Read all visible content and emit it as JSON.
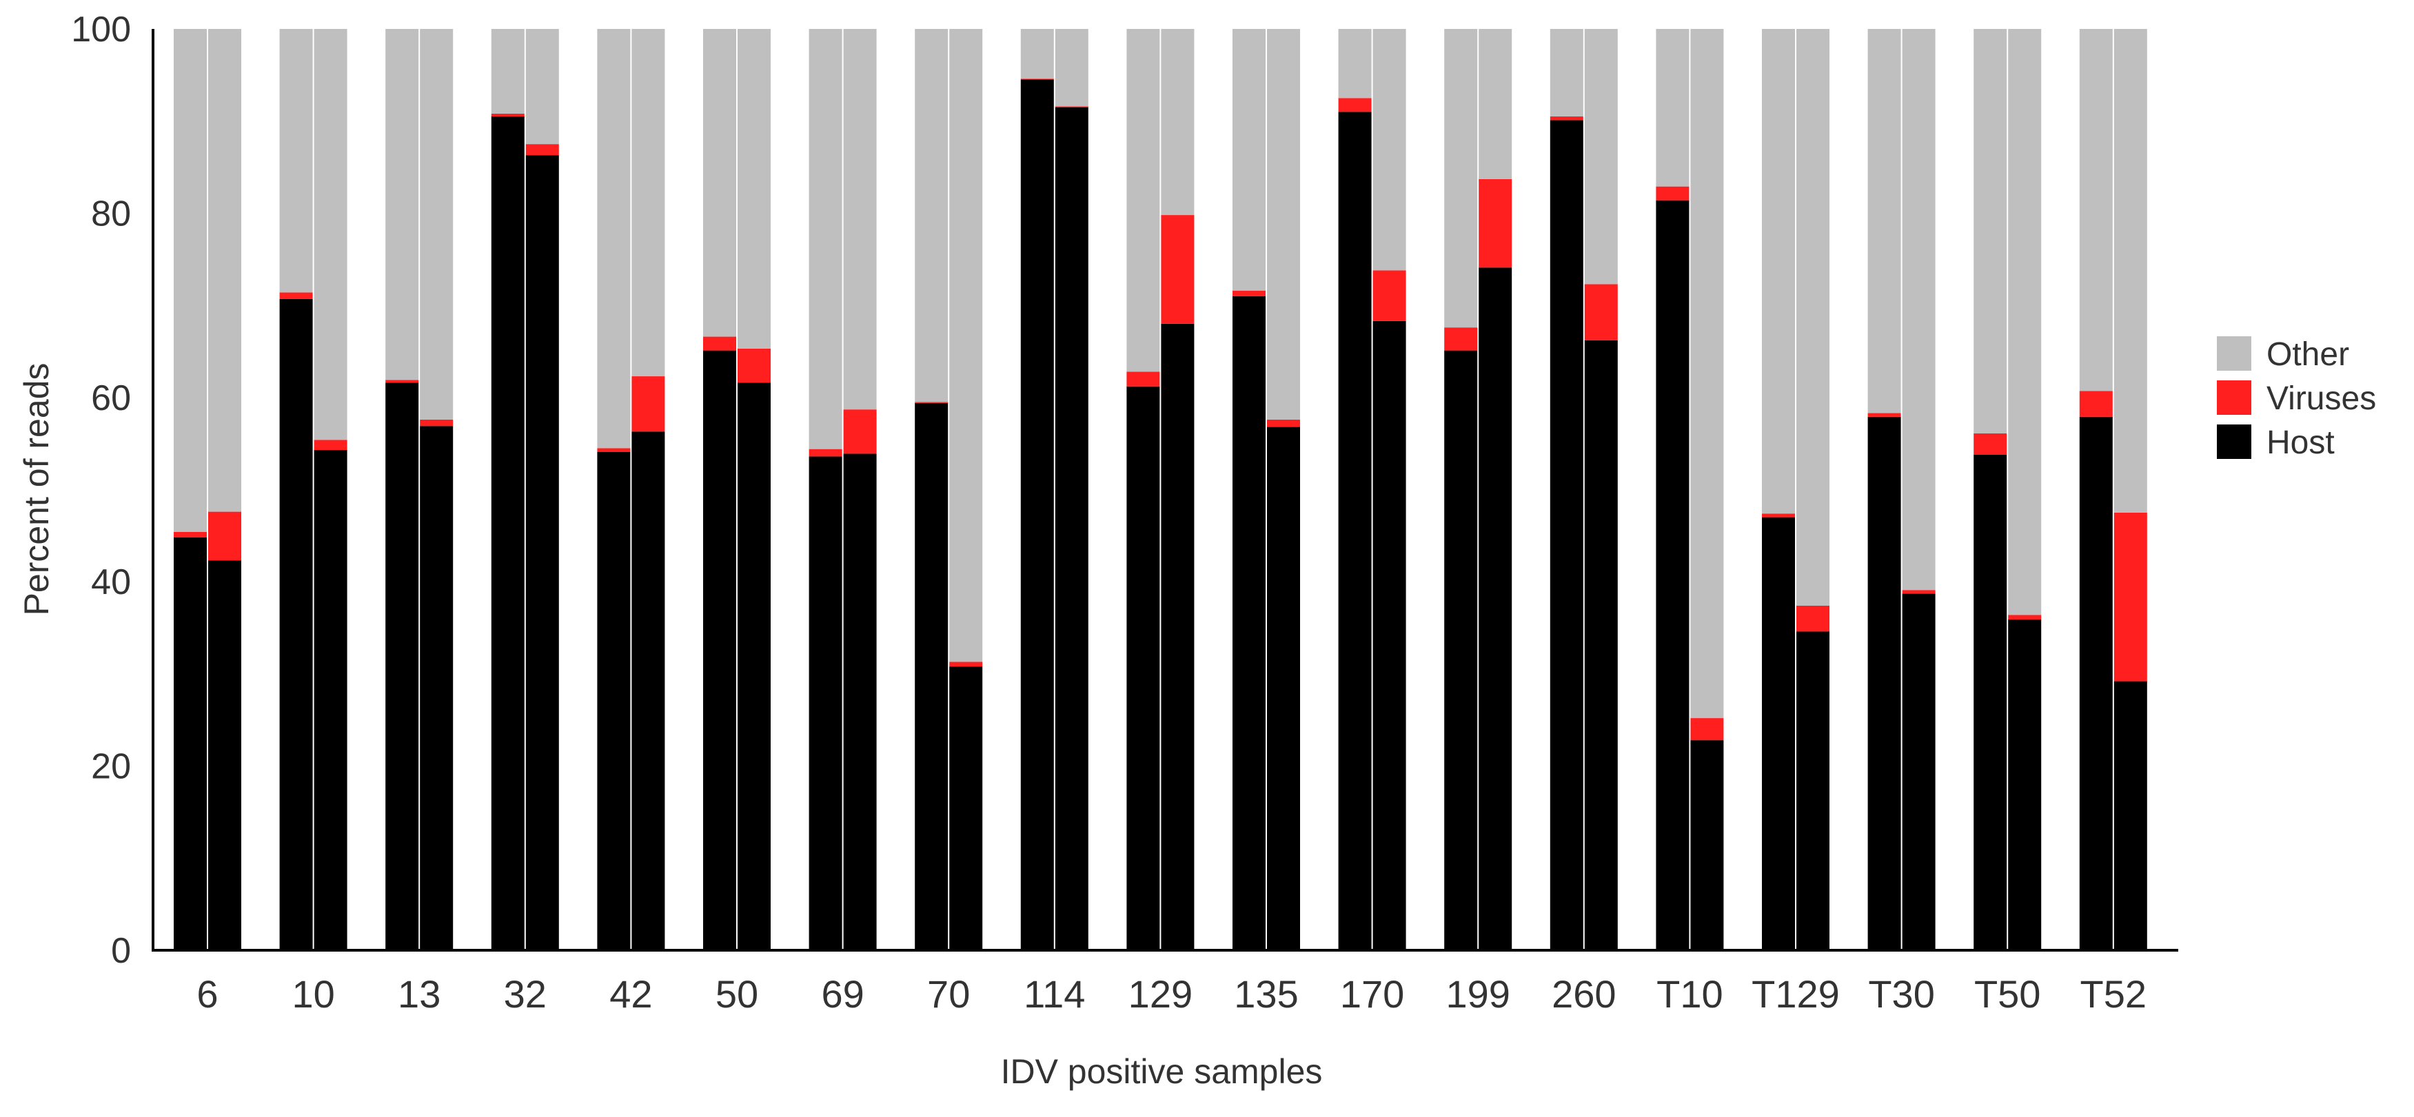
{
  "chart_data": {
    "type": "bar",
    "stacked": true,
    "title": "",
    "xlabel": "IDV positive samples",
    "ylabel": "Percent of reads",
    "ylim": [
      0,
      100
    ],
    "yticks": [
      0,
      20,
      40,
      60,
      80,
      100
    ],
    "grid": false,
    "legend_position": "right",
    "categories": [
      "6",
      "10",
      "13",
      "32",
      "42",
      "50",
      "69",
      "70",
      "114",
      "129",
      "135",
      "170",
      "199",
      "260",
      "T10",
      "T129",
      "T30",
      "T50",
      "T52"
    ],
    "bars_per_category": 2,
    "series": [
      {
        "name": "Host",
        "color": "#000000",
        "values": [
          [
            44.8,
            42.3
          ],
          [
            70.7,
            54.3
          ],
          [
            61.6,
            56.9
          ],
          [
            90.5,
            86.3
          ],
          [
            54.1,
            56.3
          ],
          [
            65.1,
            61.6
          ],
          [
            53.6,
            53.9
          ],
          [
            59.4,
            30.8
          ],
          [
            94.5,
            91.5
          ],
          [
            61.2,
            68.0
          ],
          [
            71.0,
            56.8
          ],
          [
            91.0,
            68.3
          ],
          [
            65.1,
            74.1
          ],
          [
            90.1,
            66.2
          ],
          [
            81.4,
            22.8
          ],
          [
            47.0,
            34.6
          ],
          [
            57.9,
            38.7
          ],
          [
            53.8,
            35.9
          ],
          [
            57.9,
            29.2
          ]
        ]
      },
      {
        "name": "Viruses",
        "color": "#ff1f1f",
        "values": [
          [
            0.6,
            5.3
          ],
          [
            0.7,
            1.1
          ],
          [
            0.3,
            0.7
          ],
          [
            0.3,
            1.2
          ],
          [
            0.4,
            6.0
          ],
          [
            1.5,
            3.7
          ],
          [
            0.8,
            4.8
          ],
          [
            0.1,
            0.5
          ],
          [
            0.1,
            0.1
          ],
          [
            1.6,
            11.8
          ],
          [
            0.6,
            0.8
          ],
          [
            1.5,
            5.5
          ],
          [
            2.5,
            9.6
          ],
          [
            0.4,
            6.1
          ],
          [
            1.5,
            2.4
          ],
          [
            0.4,
            2.8
          ],
          [
            0.4,
            0.4
          ],
          [
            2.3,
            0.5
          ],
          [
            2.8,
            18.3
          ]
        ]
      },
      {
        "name": "Other",
        "color": "#c0bfc0",
        "values": [
          [
            54.6,
            52.4
          ],
          [
            28.6,
            44.6
          ],
          [
            38.1,
            42.4
          ],
          [
            9.2,
            12.5
          ],
          [
            45.5,
            37.7
          ],
          [
            33.4,
            34.7
          ],
          [
            45.6,
            41.3
          ],
          [
            40.5,
            68.7
          ],
          [
            5.4,
            8.4
          ],
          [
            37.2,
            20.2
          ],
          [
            28.4,
            42.4
          ],
          [
            7.5,
            26.2
          ],
          [
            32.4,
            16.3
          ],
          [
            9.5,
            27.7
          ],
          [
            17.1,
            74.8
          ],
          [
            52.6,
            62.6
          ],
          [
            41.7,
            60.9
          ],
          [
            43.9,
            63.6
          ],
          [
            39.3,
            52.5
          ]
        ]
      }
    ],
    "legend_order": [
      "Other",
      "Viruses",
      "Host"
    ]
  }
}
